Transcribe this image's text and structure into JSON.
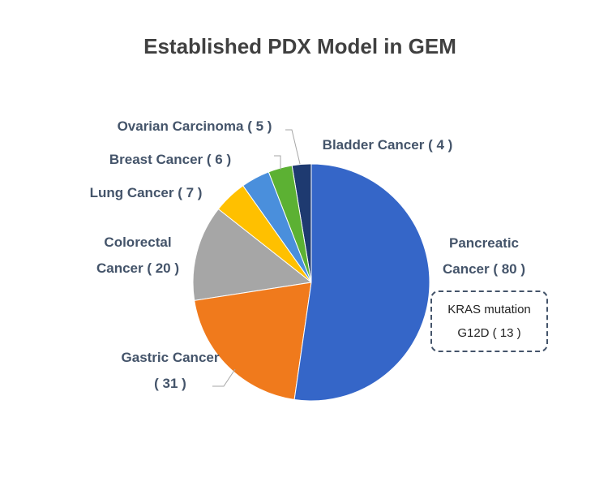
{
  "chart_data": {
    "type": "pie",
    "title": "Established PDX Model in GEM",
    "categories": [
      "Pancreatic Cancer",
      "Gastric Cancer",
      "Colorectal Cancer",
      "Lung Cancer",
      "Breast Cancer",
      "Ovarian Carcinoma",
      "Bladder Cancer"
    ],
    "values": [
      80,
      31,
      20,
      7,
      6,
      5,
      4
    ],
    "value_labels": [
      "( 80 )",
      "( 31 )",
      "( 20 )",
      "( 7 )",
      "( 6 )",
      "( 5 )",
      "( 4 )"
    ],
    "colors": [
      "#3566c8",
      "#f07a1c",
      "#a6a6a6",
      "#ffc000",
      "#4a8fdc",
      "#5cb133",
      "#1e3a70"
    ],
    "annotation": "KRAS mutation G12D ( 13 )"
  }
}
